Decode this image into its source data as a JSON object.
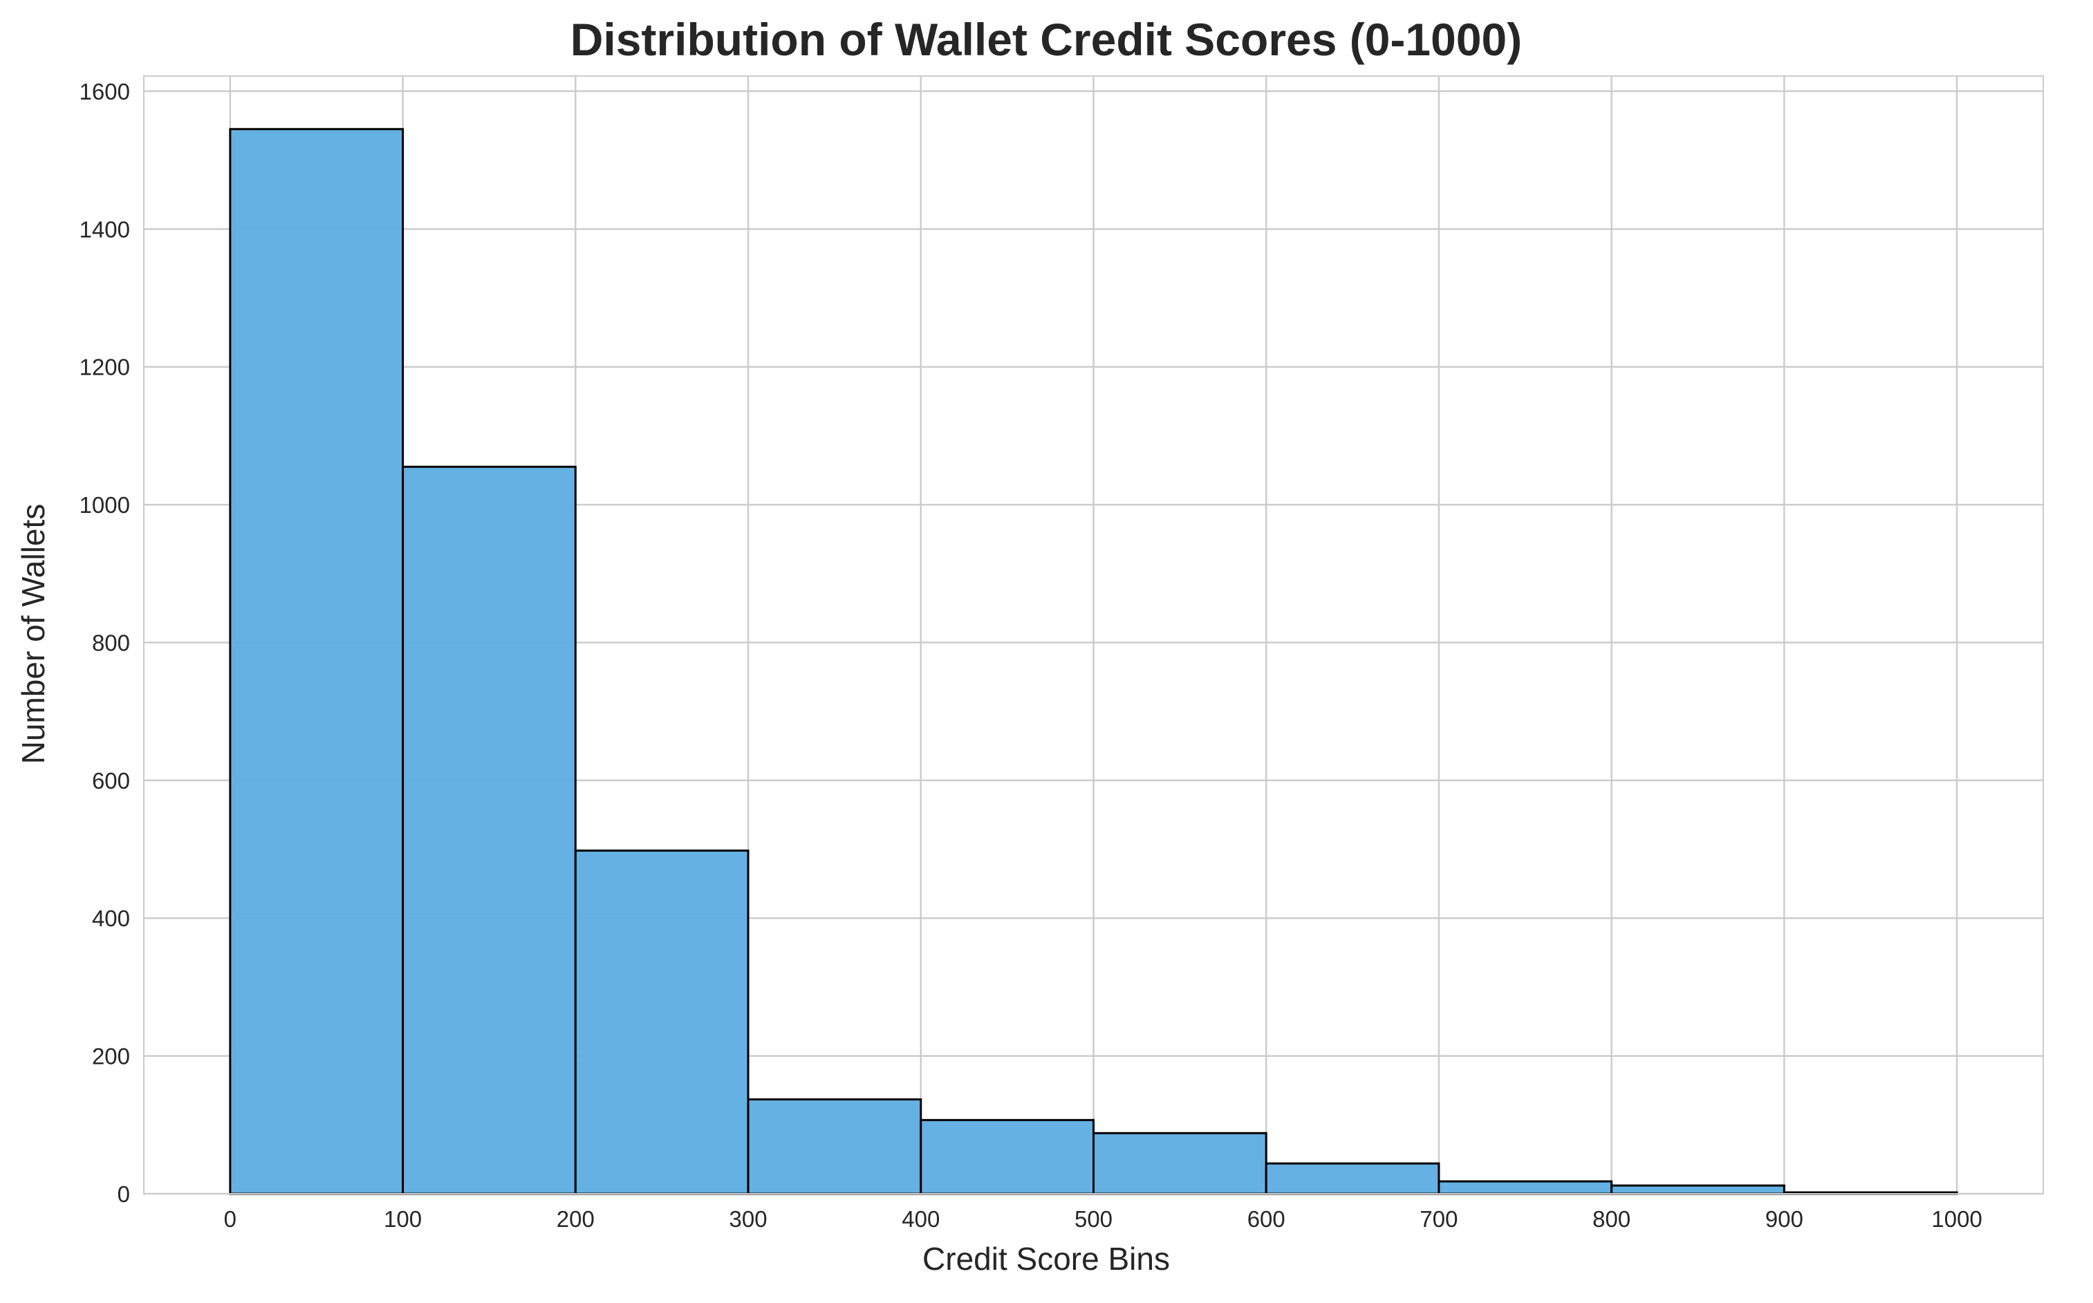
{
  "chart_data": {
    "type": "bar",
    "title": "Distribution of Wallet Credit Scores (0-1000)",
    "xlabel": "Credit Score Bins",
    "ylabel": "Number of Wallets",
    "bin_edges": [
      0,
      100,
      200,
      300,
      400,
      500,
      600,
      700,
      800,
      900,
      1000
    ],
    "values": [
      1545,
      1055,
      498,
      137,
      107,
      88,
      44,
      18,
      12,
      2
    ],
    "xlim": [
      -50,
      1050
    ],
    "ylim": [
      0,
      1622
    ],
    "x_ticks": [
      "0",
      "100",
      "200",
      "300",
      "400",
      "500",
      "600",
      "700",
      "800",
      "900",
      "1000"
    ],
    "y_ticks": [
      "0",
      "200",
      "400",
      "600",
      "800",
      "1000",
      "1200",
      "1400",
      "1600"
    ],
    "grid": true,
    "legend": "none",
    "bar_color": "#5dade2",
    "bar_edge_color": "#000000",
    "grid_color": "#cccccc"
  }
}
